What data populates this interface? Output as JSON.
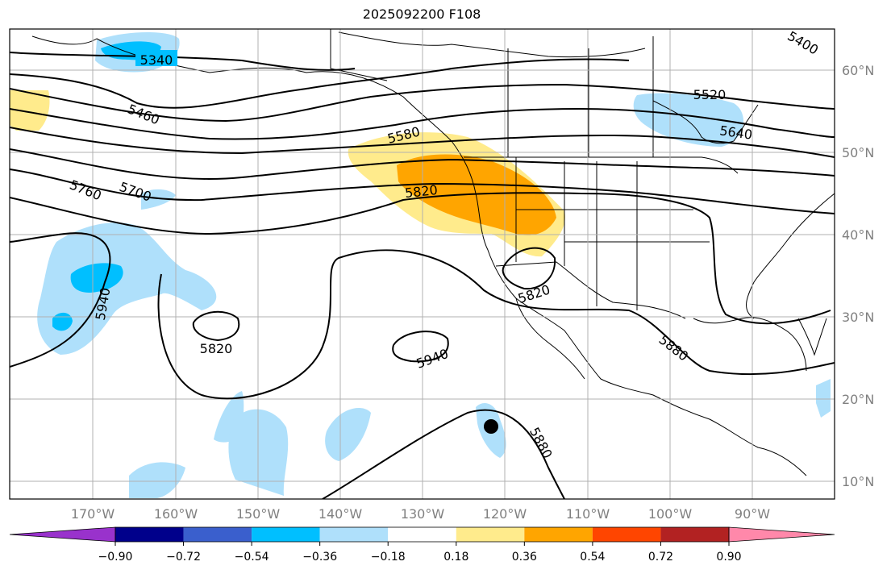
{
  "title": "2025092200 F108",
  "longitude_labels": [
    "170°W",
    "160°W",
    "150°W",
    "140°W",
    "130°W",
    "120°W",
    "110°W",
    "100°W",
    "90°W"
  ],
  "latitude_labels": [
    "60°N",
    "50°N",
    "40°N",
    "30°N",
    "20°N",
    "10°N"
  ],
  "contour_labels": [
    "5340",
    "5400",
    "5460",
    "5520",
    "5580",
    "5640",
    "5700",
    "5760",
    "5820",
    "5820",
    "5820",
    "5880",
    "5880",
    "5940",
    "5940"
  ],
  "colorbar": {
    "ticks": [
      "−0.90",
      "−0.72",
      "−0.54",
      "−0.36",
      "−0.18",
      "0.18",
      "0.36",
      "0.54",
      "0.72",
      "0.90"
    ],
    "colors": [
      "#9932cc",
      "#00008b",
      "#3a5fcd",
      "#00bfff",
      "#afe0fb",
      "#ffffff",
      "#ffeb8c",
      "#ffa500",
      "#ff4500",
      "#b22222",
      "#ff88aa"
    ]
  },
  "colors": {
    "light_blue": "#afe0fb",
    "mid_blue": "#00bfff",
    "light_yellow": "#ffeb8c",
    "orange": "#ffa500"
  }
}
